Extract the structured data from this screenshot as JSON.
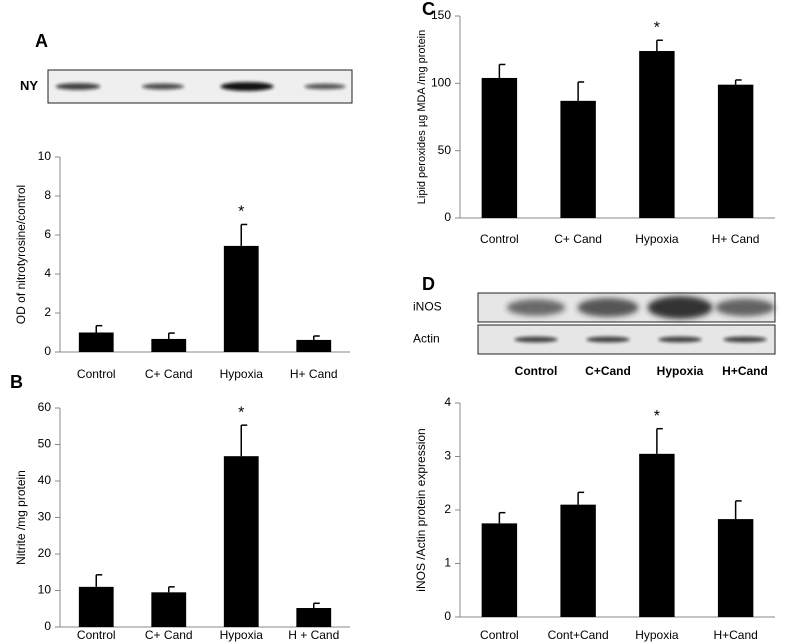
{
  "chart_data": [
    {
      "type": "bar",
      "panel": "A",
      "blot": {
        "rows": [
          "NY"
        ]
      },
      "y_label": "OD of nitrotyrosine/control",
      "categories": [
        "Control",
        "C+ Cand",
        "Hypoxia",
        "H+ Cand"
      ],
      "values": [
        1.0,
        0.67,
        5.44,
        0.62
      ],
      "errors": [
        0.35,
        0.3,
        1.1,
        0.2
      ],
      "markers": [
        null,
        null,
        "*",
        null
      ],
      "color": "#000000",
      "ylim": [
        0,
        10
      ],
      "yticks": [
        0,
        2,
        4,
        6,
        8,
        10
      ],
      "grid": false
    },
    {
      "type": "bar",
      "panel": "B",
      "y_label": "Nitrite /mg protein",
      "categories": [
        "Control",
        "C+ Cand",
        "Hypoxia",
        "H + Cand"
      ],
      "values": [
        11,
        9.5,
        46.8,
        5.2
      ],
      "errors": [
        3.3,
        1.5,
        8.5,
        1.3
      ],
      "markers": [
        null,
        null,
        "*",
        null
      ],
      "color": "#000000",
      "ylim": [
        0,
        60
      ],
      "yticks": [
        0,
        10,
        20,
        30,
        40,
        50,
        60
      ],
      "grid": false
    },
    {
      "type": "bar",
      "panel": "C",
      "y_label": "Lipid peroxides µg MDA /mg protein",
      "categories": [
        "Control",
        "C+ Cand",
        "Hypoxia",
        "H+ Cand"
      ],
      "values": [
        104,
        87,
        124,
        99
      ],
      "errors": [
        10,
        14,
        8,
        3.5
      ],
      "markers": [
        null,
        null,
        "*",
        null
      ],
      "color": "#000000",
      "ylim": [
        0,
        150
      ],
      "yticks": [
        0,
        50,
        100,
        150
      ],
      "grid": false
    },
    {
      "type": "bar",
      "panel": "D",
      "blot": {
        "rows": [
          "iNOS",
          "Actin"
        ],
        "lanes": [
          "Control",
          "C+Cand",
          "Hypoxia",
          "H+Cand"
        ]
      },
      "y_label": "iNOS /Actin protein expression",
      "categories": [
        "Control",
        "Cont+Cand",
        "Hypoxia",
        "H+Cand"
      ],
      "values": [
        1.75,
        2.1,
        3.05,
        1.83
      ],
      "errors": [
        0.2,
        0.23,
        0.47,
        0.34
      ],
      "markers": [
        null,
        null,
        "*",
        null
      ],
      "color": "#000000",
      "ylim": [
        0,
        4
      ],
      "yticks": [
        0,
        1,
        2,
        3,
        4
      ],
      "grid": false
    }
  ]
}
